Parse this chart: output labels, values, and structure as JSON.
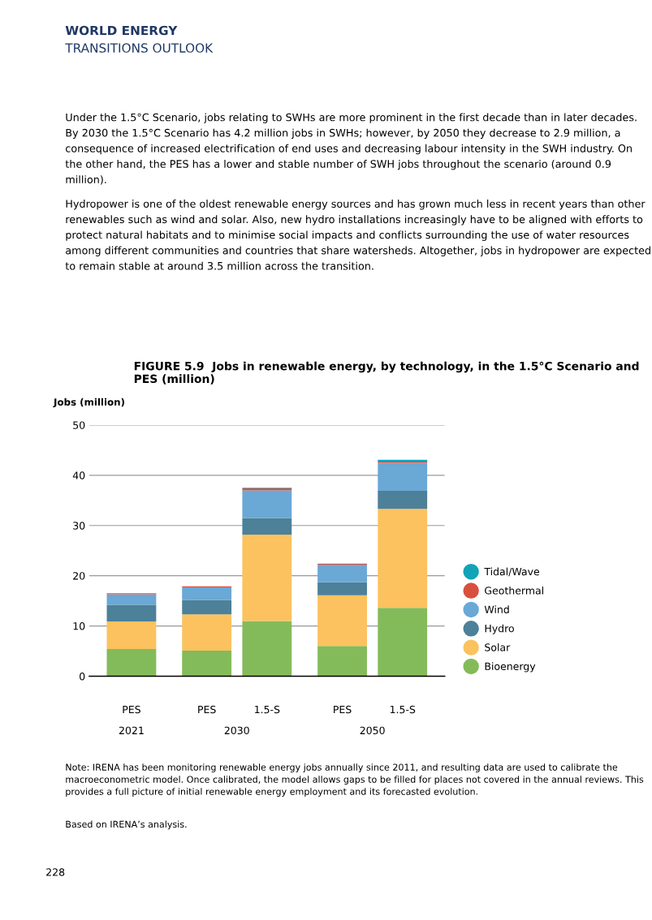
{
  "chart_data": {
    "type": "bar",
    "stacked": true,
    "title": "FIGURE 5.9  Jobs in renewable energy, by technology, in the 1.5°C Scenario and PES (million)",
    "ylabel": "Jobs (million)",
    "categories": [
      "PES",
      "PES",
      "1.5-S",
      "PES",
      "1.5-S"
    ],
    "series": [
      {
        "name": "Bioenergy",
        "color": "#84bb5a",
        "values": [
          5.4,
          5.1,
          11.0,
          6.0,
          13.6
        ]
      },
      {
        "name": "Solar",
        "color": "#fbc25f",
        "values": [
          5.5,
          7.2,
          17.2,
          10.1,
          19.7
        ]
      },
      {
        "name": "Hydro",
        "color": "#4d8099",
        "values": [
          3.3,
          2.9,
          3.3,
          2.6,
          3.6
        ]
      },
      {
        "name": "Wind",
        "color": "#6aa8d6",
        "values": [
          2.1,
          2.5,
          5.5,
          3.5,
          5.6
        ]
      },
      {
        "name": "Geothermal",
        "color": "#d9503f",
        "values": [
          0.2,
          0.2,
          0.4,
          0.2,
          0.2
        ]
      },
      {
        "name": "Tidal/Wave",
        "color": "#12a3b8",
        "values": [
          0,
          0,
          0.1,
          0,
          0.4
        ]
      }
    ],
    "ylim": [
      0,
      50
    ],
    "yticks": [
      0,
      10,
      20,
      30,
      40,
      50
    ],
    "grid": "y",
    "legend": "right",
    "marker": "circle",
    "annotations": [
      "WORLD ENERGY",
      "TRANSITIONS OUTLOOK",
      "Under the 1.5°C Scenario, jobs relating to SWHs are more prominent in the first decade than in later decades. By 2030 the 1.5°C Scenario has 4.2 million jobs in SWHs; however, by 2050 they decrease to 2.9 million, a consequence of increased electrification of end uses and decreasing labour intensity in the SWH industry. On the other hand, the PES has a lower and stable number of SWH jobs throughout the scenario (around 0.9 million).",
      "Hydropower is one of the oldest renewable energy sources and has grown much less in recent years than other renewables such as wind and solar. Also, new hydro installations increasingly have to be aligned with efforts to protect natural habitats and to minimise social impacts and conflicts surrounding the use of water resources among different communities and countries that share watersheds. Altogether, jobs in hydropower are expected to remain stable at around 3.5 million across the transition.",
      "2021",
      "2030",
      "2050",
      "Note: IRENA has been monitoring renewable energy jobs annually since 2011, and resulting data are used to calibrate the macroeconometric model. Once calibrated, the model allows gaps to be filled for places not covered in the annual reviews. This provides a full picture of initial renewable energy employment and its forecasted evolution.",
      "Based on IRENA’s analysis.",
      "228"
    ]
  }
}
